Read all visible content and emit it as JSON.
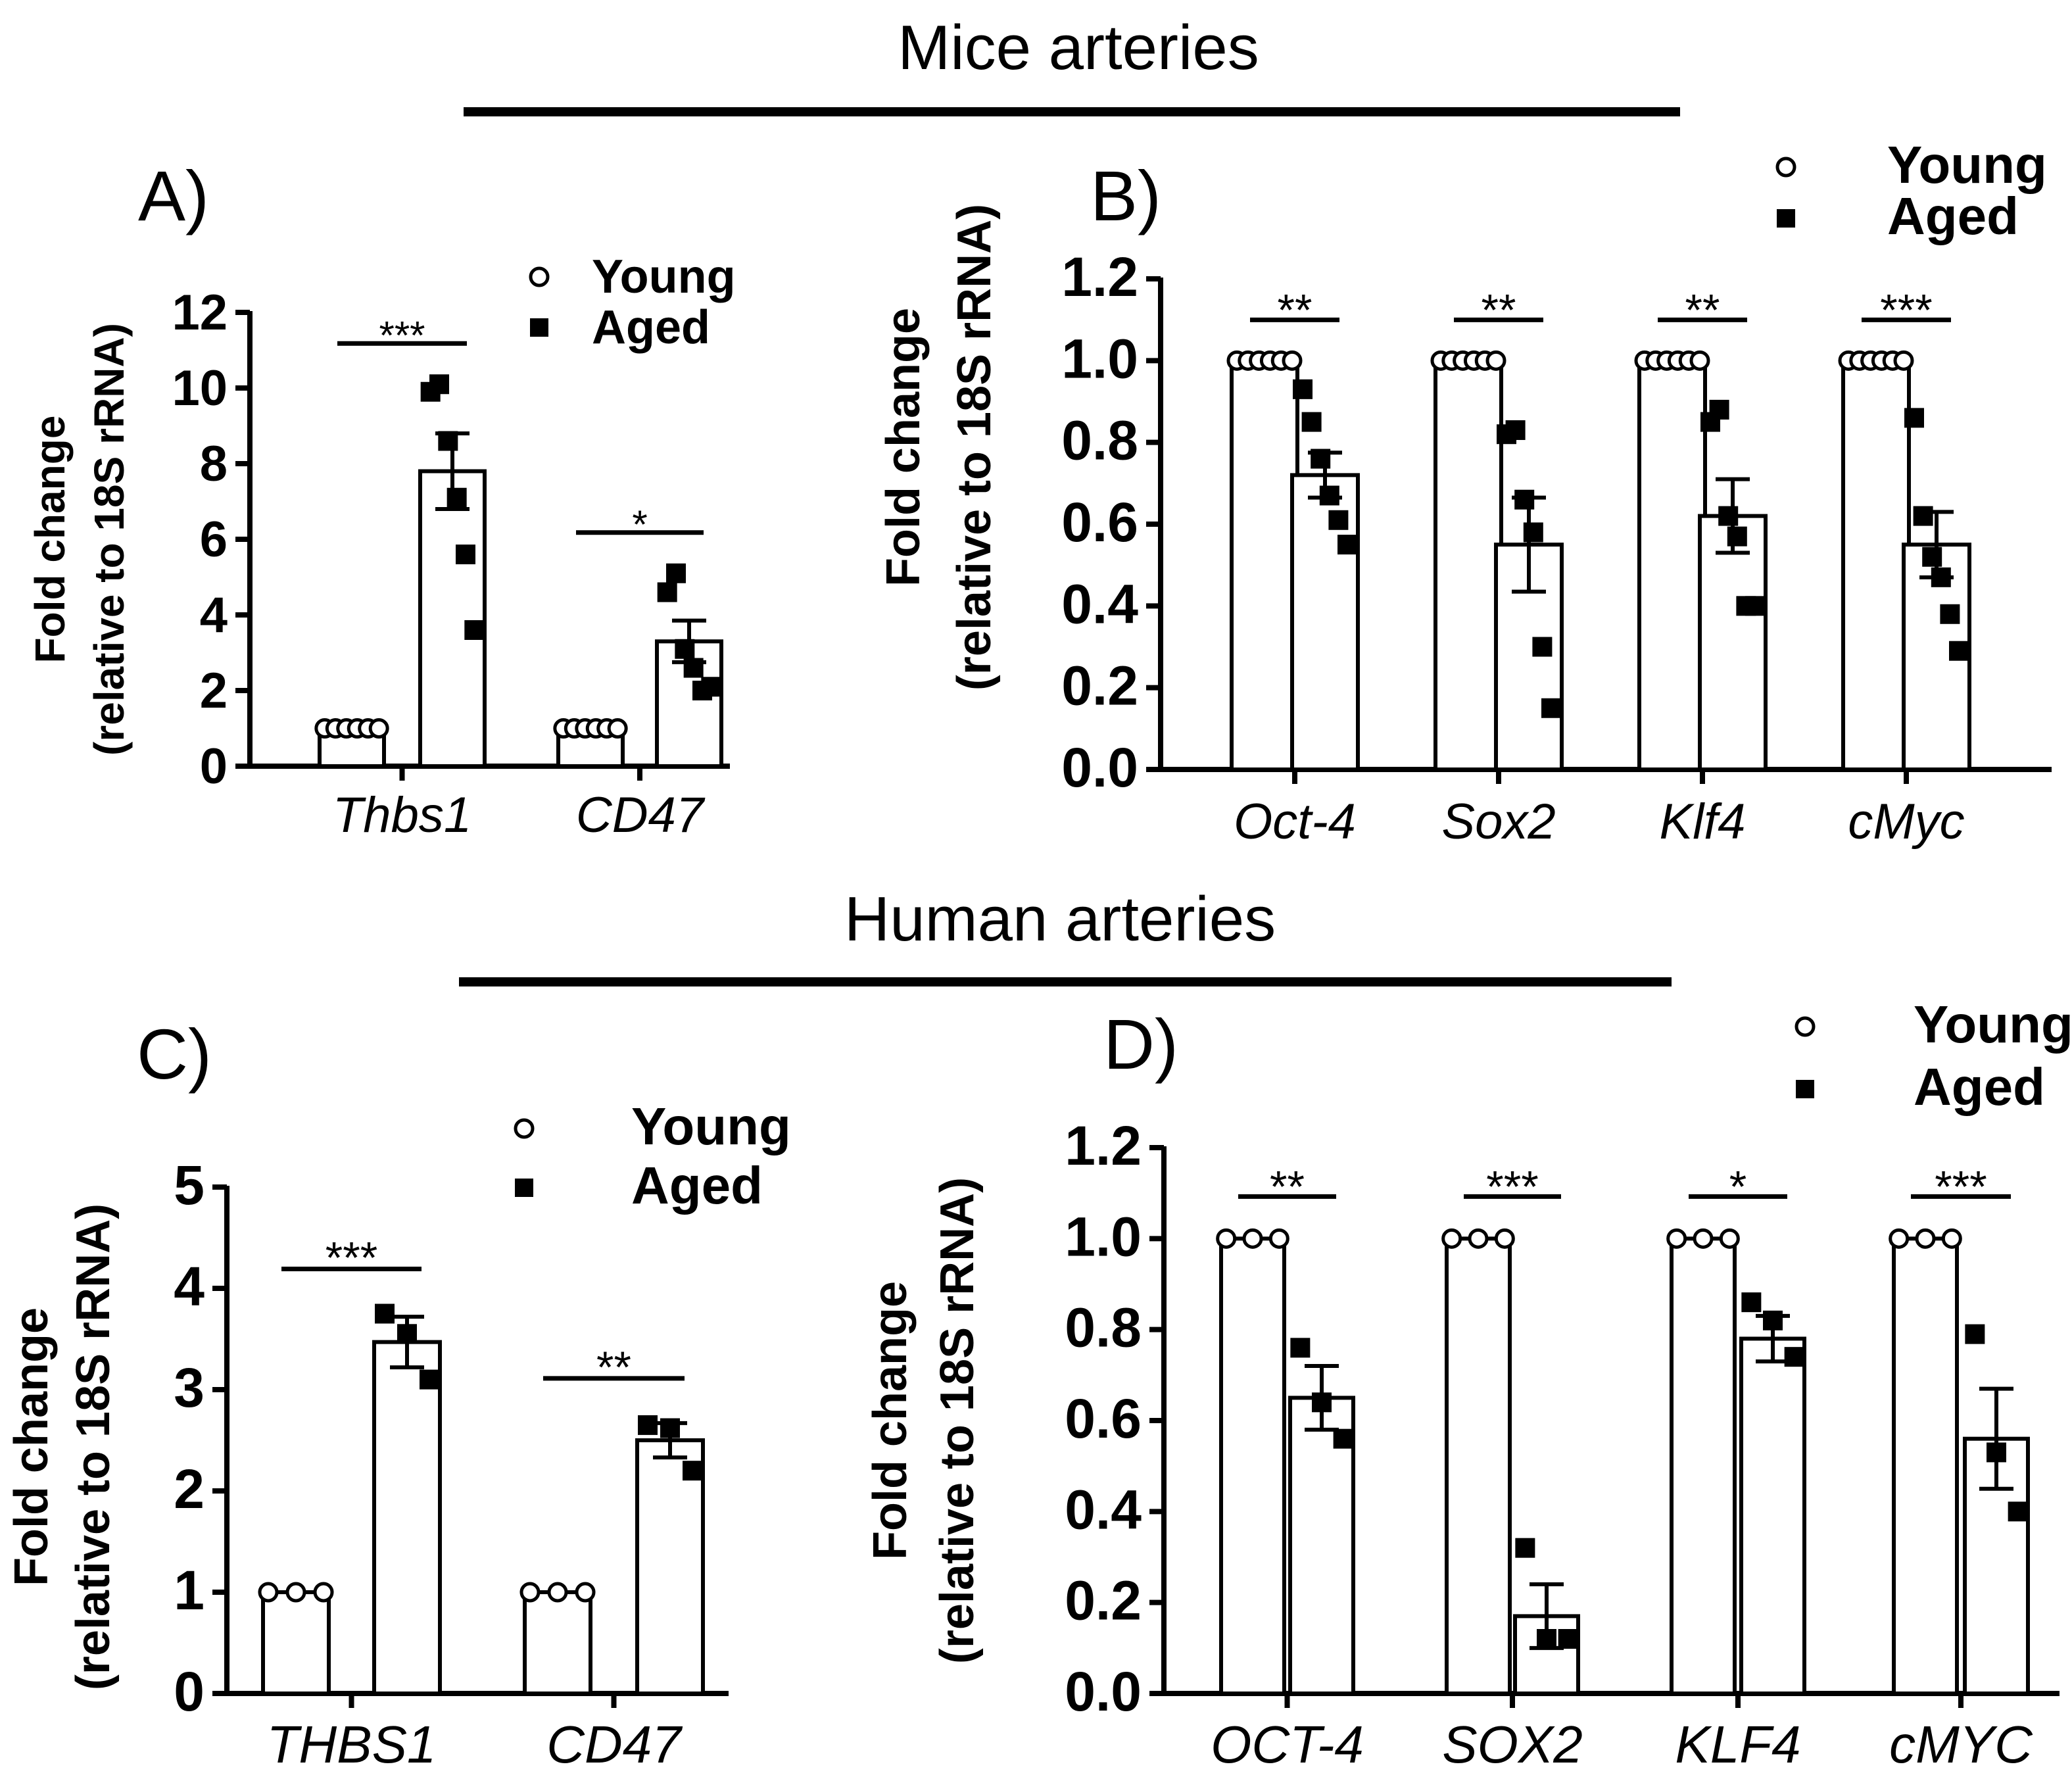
{
  "sections": {
    "mice_title": "Mice arteries",
    "human_title": "Human arteries"
  },
  "legend": {
    "young": "Young",
    "aged": "Aged"
  },
  "colors": {
    "ink": "#000000",
    "bar_fill": "#ffffff"
  },
  "chart_data": [
    {
      "id": "A",
      "panel": "A)",
      "type": "bar",
      "title": "",
      "ylabel_line1": "Fold change",
      "ylabel_line2": "(relative to 18S rRNA)",
      "ylim": [
        0,
        12
      ],
      "yticks": [
        "0",
        "2",
        "4",
        "6",
        "8",
        "10",
        "12"
      ],
      "categories": [
        "Thbs1",
        "CD47"
      ],
      "series": [
        {
          "name": "Young",
          "values": [
            1.0,
            1.0
          ],
          "sem": [
            0,
            0
          ]
        },
        {
          "name": "Aged",
          "values": [
            7.8,
            3.3
          ],
          "sem": [
            1.0,
            0.55
          ]
        }
      ],
      "points": {
        "Young": [
          [
            1,
            1,
            1,
            1,
            1,
            1
          ],
          [
            1,
            1,
            1,
            1,
            1,
            1
          ]
        ],
        "Aged": [
          [
            9.9,
            10.1,
            8.6,
            7.1,
            5.6,
            3.6
          ],
          [
            4.6,
            5.1,
            3.1,
            2.6,
            2.0,
            2.1
          ]
        ]
      },
      "significance": [
        "***",
        "*"
      ],
      "legend_position": "top-right"
    },
    {
      "id": "B",
      "panel": "B)",
      "type": "bar",
      "title": "",
      "ylabel_line1": "Fold change",
      "ylabel_line2": "(relative to 18S rRNA)",
      "ylim": [
        0,
        1.2
      ],
      "yticks": [
        "0.0",
        "0.2",
        "0.4",
        "0.6",
        "0.8",
        "1.0",
        "1.2"
      ],
      "categories": [
        "Oct-4",
        "Sox2",
        "Klf4",
        "cMyc"
      ],
      "series": [
        {
          "name": "Young",
          "values": [
            1.0,
            1.0,
            1.0,
            1.0
          ],
          "sem": [
            0,
            0,
            0,
            0
          ]
        },
        {
          "name": "Aged",
          "values": [
            0.72,
            0.55,
            0.62,
            0.55
          ],
          "sem": [
            0.055,
            0.115,
            0.09,
            0.08
          ]
        }
      ],
      "points": {
        "Young": [
          [
            1,
            1,
            1,
            1,
            1,
            1
          ],
          [
            1,
            1,
            1,
            1,
            1,
            1
          ],
          [
            1,
            1,
            1,
            1,
            1,
            1
          ],
          [
            1,
            1,
            1,
            1,
            1,
            1
          ]
        ],
        "Aged": [
          [
            0.93,
            0.85,
            0.76,
            0.67,
            0.61,
            0.55
          ],
          [
            0.82,
            0.83,
            0.66,
            0.58,
            0.3,
            0.15
          ],
          [
            0.85,
            0.88,
            0.62,
            0.57,
            0.4,
            0.4
          ],
          [
            0.86,
            0.62,
            0.52,
            0.47,
            0.38,
            0.29
          ]
        ]
      },
      "significance": [
        "**",
        "**",
        "**",
        "***"
      ],
      "legend_position": "top-right"
    },
    {
      "id": "C",
      "panel": "C)",
      "type": "bar",
      "title": "",
      "ylabel_line1": "Fold change",
      "ylabel_line2": "(relative to 18S rRNA)",
      "ylim": [
        0,
        5
      ],
      "yticks": [
        "0",
        "1",
        "2",
        "3",
        "4",
        "5"
      ],
      "categories": [
        "THBS1",
        "CD47"
      ],
      "series": [
        {
          "name": "Young",
          "values": [
            1.0,
            1.0
          ],
          "sem": [
            0,
            0
          ]
        },
        {
          "name": "Aged",
          "values": [
            3.47,
            2.5
          ],
          "sem": [
            0.25,
            0.17
          ]
        }
      ],
      "points": {
        "Young": [
          [
            1,
            1,
            1
          ],
          [
            1,
            1,
            1
          ]
        ],
        "Aged": [
          [
            3.75,
            3.55,
            3.1
          ],
          [
            2.65,
            2.62,
            2.2
          ]
        ]
      },
      "significance": [
        "***",
        "**"
      ],
      "legend_position": "top-right"
    },
    {
      "id": "D",
      "panel": "D)",
      "type": "bar",
      "title": "",
      "ylabel_line1": "Fold change",
      "ylabel_line2": "(relative to 18S rRNA)",
      "ylim": [
        0,
        1.2
      ],
      "yticks": [
        "0.0",
        "0.2",
        "0.4",
        "0.6",
        "0.8",
        "1.0",
        "1.2"
      ],
      "categories": [
        "OCT-4",
        "SOX2",
        "KLF4",
        "cMYC"
      ],
      "series": [
        {
          "name": "Young",
          "values": [
            1.0,
            1.0,
            1.0,
            1.0
          ],
          "sem": [
            0,
            0,
            0,
            0
          ]
        },
        {
          "name": "Aged",
          "values": [
            0.65,
            0.17,
            0.78,
            0.56
          ],
          "sem": [
            0.07,
            0.07,
            0.05,
            0.11
          ]
        }
      ],
      "points": {
        "Young": [
          [
            1,
            1,
            1
          ],
          [
            1,
            1,
            1
          ],
          [
            1,
            1,
            1
          ],
          [
            1,
            1,
            1
          ]
        ],
        "Aged": [
          [
            0.76,
            0.64,
            0.56
          ],
          [
            0.32,
            0.12,
            0.12
          ],
          [
            0.86,
            0.82,
            0.74
          ],
          [
            0.79,
            0.53,
            0.4
          ]
        ]
      },
      "significance": [
        "**",
        "***",
        "*",
        "***"
      ],
      "legend_position": "top-right"
    }
  ]
}
